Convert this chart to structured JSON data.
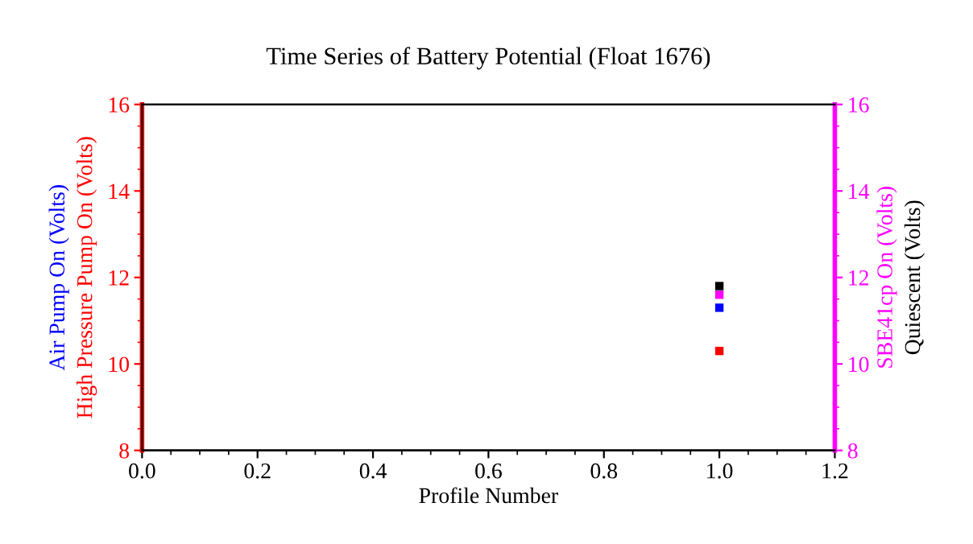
{
  "chart_data": {
    "type": "scatter",
    "title": "Time Series of Battery Potential (Float 1676)",
    "xlabel": "Profile Number",
    "xlim": [
      0.0,
      1.2
    ],
    "xticks": [
      {
        "value": 0,
        "label": "0.0"
      },
      0.2,
      0.4,
      0.6,
      0.8,
      {
        "value": 1,
        "label": "1.0"
      },
      1.2
    ],
    "ylim": [
      8,
      16
    ],
    "yticks": [
      8,
      10,
      12,
      14,
      16
    ],
    "y2lim": [
      8,
      16
    ],
    "y2ticks": [
      8,
      10,
      12,
      14,
      16
    ],
    "x": [
      1
    ],
    "marker": "square",
    "grid": false,
    "legend": false,
    "series": [
      {
        "name": "High Pressure Pump On (Volts)",
        "color": "#ff0000",
        "axis": "y",
        "values": [
          10.3
        ]
      },
      {
        "name": "Air Pump On (Volts)",
        "color": "#0000ff",
        "axis": "y",
        "values": [
          11.3
        ]
      },
      {
        "name": "SBE41cp On (Volts)",
        "color": "#ff00ff",
        "axis": "y2",
        "values": [
          11.6
        ]
      },
      {
        "name": "Quiescent (Volts)",
        "color": "#000000",
        "axis": "y2",
        "values": [
          11.8
        ]
      }
    ]
  }
}
